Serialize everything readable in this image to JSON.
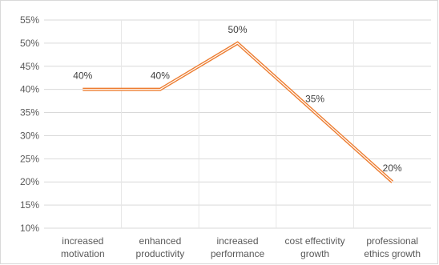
{
  "chart_data": {
    "type": "line",
    "title": "",
    "xlabel": "",
    "ylabel": "",
    "categories": [
      [
        "increased",
        "motivation"
      ],
      [
        "enhanced",
        "productivity"
      ],
      [
        "increased",
        "performance"
      ],
      [
        "cost effectivity",
        "growth"
      ],
      [
        "professional",
        "ethics growth"
      ]
    ],
    "series": [
      {
        "values": [
          40,
          40,
          50,
          35,
          20
        ],
        "labels": [
          "40%",
          "40%",
          "50%",
          "35%",
          "20%"
        ],
        "color": "#ED7D31"
      }
    ],
    "ylim": [
      10,
      55
    ],
    "y_ticks": [
      10,
      15,
      20,
      25,
      30,
      35,
      40,
      45,
      50,
      55
    ],
    "y_tick_labels": [
      "10%",
      "15%",
      "20%",
      "25%",
      "30%",
      "35%",
      "40%",
      "45%",
      "50%",
      "55%"
    ],
    "grid": true,
    "legend": "none"
  }
}
